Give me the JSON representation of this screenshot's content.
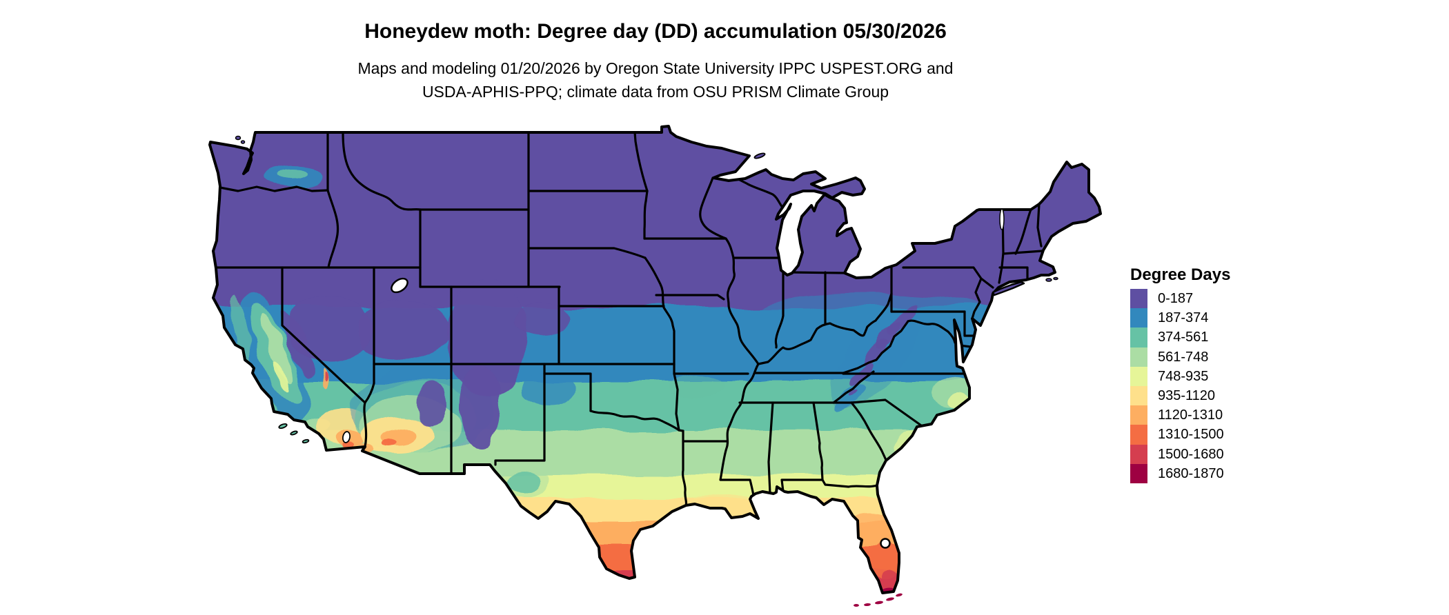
{
  "header": {
    "title": "Honeydew moth: Degree day (DD) accumulation 05/30/2026",
    "subtitle_line1": "Maps and modeling 01/20/2026 by Oregon State University IPPC USPEST.ORG and",
    "subtitle_line2": "USDA-APHIS-PPQ; climate data from OSU PRISM Climate Group"
  },
  "legend": {
    "title": "Degree Days",
    "items": [
      {
        "label": "0-187",
        "color": "#5e4fa2"
      },
      {
        "label": "187-374",
        "color": "#3288bd"
      },
      {
        "label": "374-561",
        "color": "#66c2a5"
      },
      {
        "label": "561-748",
        "color": "#abdda4"
      },
      {
        "label": "748-935",
        "color": "#e6f598"
      },
      {
        "label": "935-1120",
        "color": "#fee08b"
      },
      {
        "label": "1120-1310",
        "color": "#fdae61"
      },
      {
        "label": "1310-1500",
        "color": "#f46d43"
      },
      {
        "label": "1500-1680",
        "color": "#d53e4f"
      },
      {
        "label": "1680-1870",
        "color": "#9e0142"
      }
    ]
  },
  "map": {
    "region": "Contiguous United States",
    "type": "degree-day raster choropleth",
    "units": "degree days",
    "date_shown": "05/30/2026",
    "border_color": "#000000",
    "background_color": "#ffffff",
    "pattern": "cool (0-187) across the north and mountain west, warming southward in latitudinal bands to hottest (1680-1870) at the southern tip of Florida and the Florida Keys; hot spots in the low deserts of southern Arizona / southeastern California and south Texas; cool Appalachian and Rocky Mountain ridges"
  }
}
